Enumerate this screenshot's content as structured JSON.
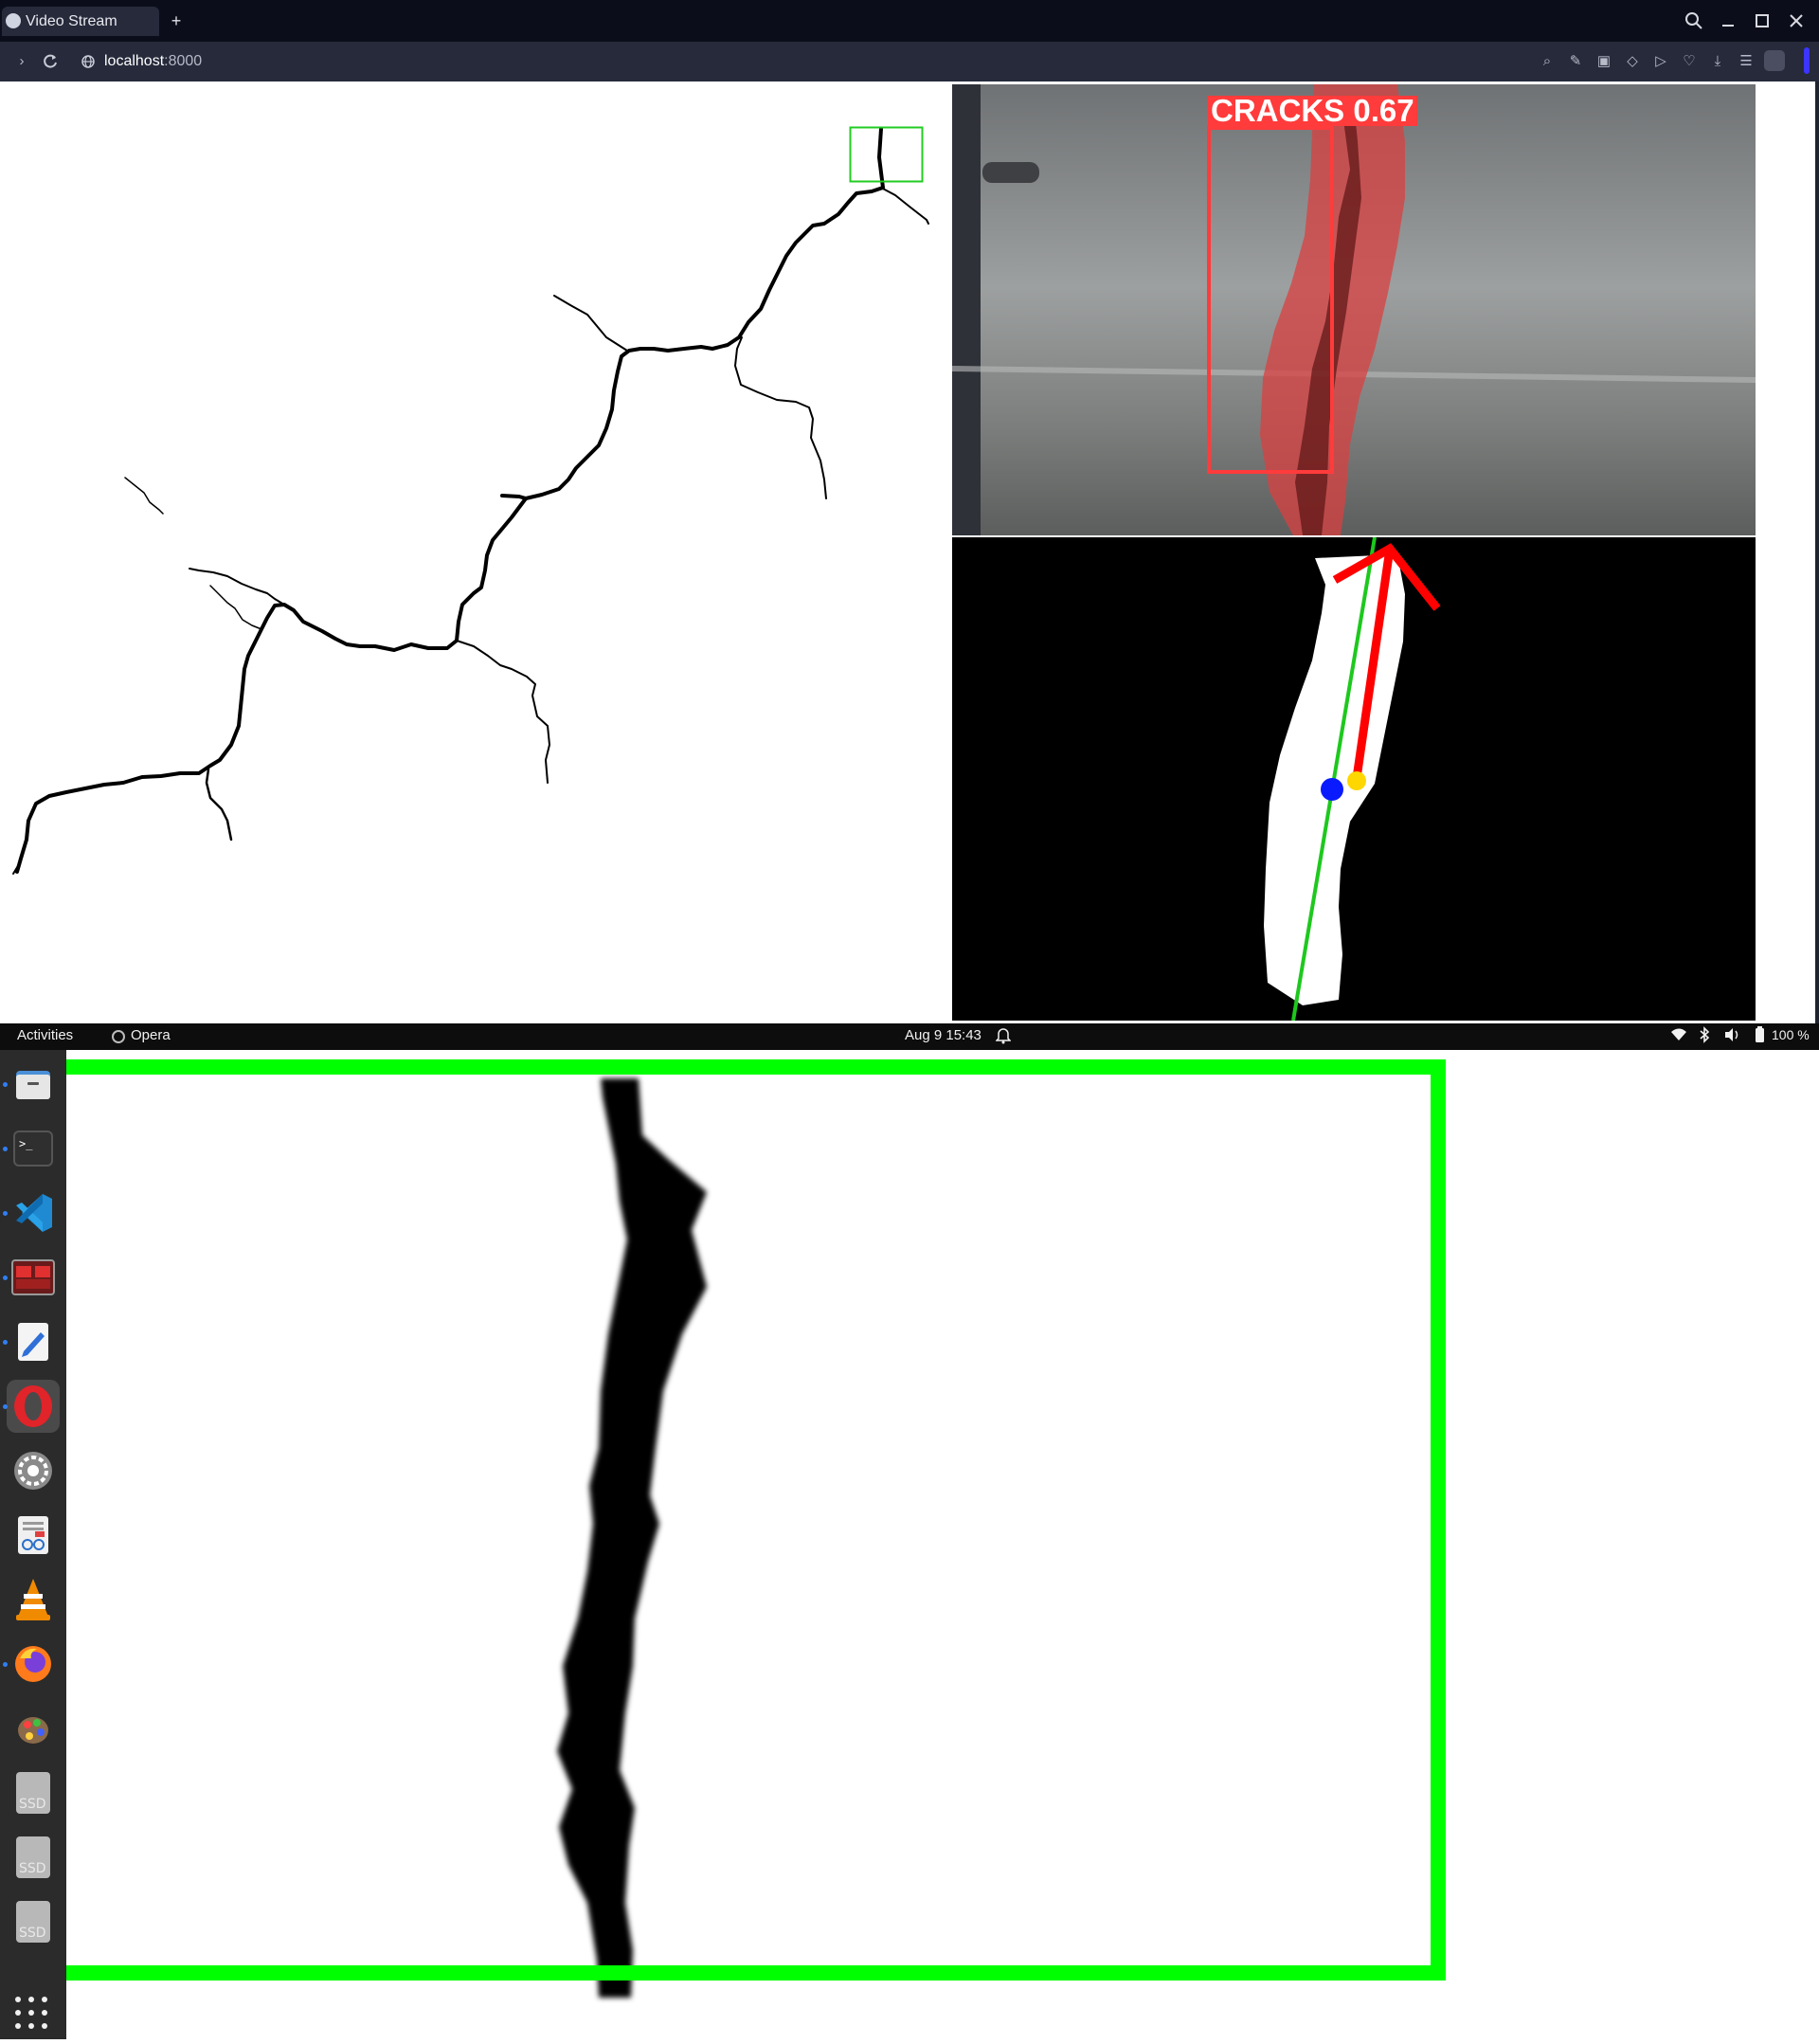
{
  "browser": {
    "tab_title": "Video Stream",
    "new_tab_label": "+",
    "url_host": "localhost",
    "url_port": ":8000"
  },
  "detection": {
    "label": "CRACKS 0.67",
    "colors": {
      "box": "#ff3b3b",
      "mask": "#d94040",
      "axis": "#1ec81e",
      "arrow": "#ff0000",
      "centroid": "#0a1aff",
      "tip": "#ffd700"
    }
  },
  "topbar": {
    "activities": "Activities",
    "app_name": "Opera",
    "clock": "Aug 9  15:43",
    "battery": "100 %"
  },
  "dock": {
    "items": [
      "files-icon",
      "terminal-icon",
      "vscode-icon",
      "mosaic-app-icon",
      "text-editor-icon",
      "opera-icon",
      "settings-icon",
      "document-viewer-icon",
      "vlc-icon",
      "firefox-icon",
      "paint-app-icon",
      "ssd-drive-icon",
      "ssd-drive-icon",
      "ssd-drive-icon"
    ],
    "ssd_label": "SSD"
  }
}
